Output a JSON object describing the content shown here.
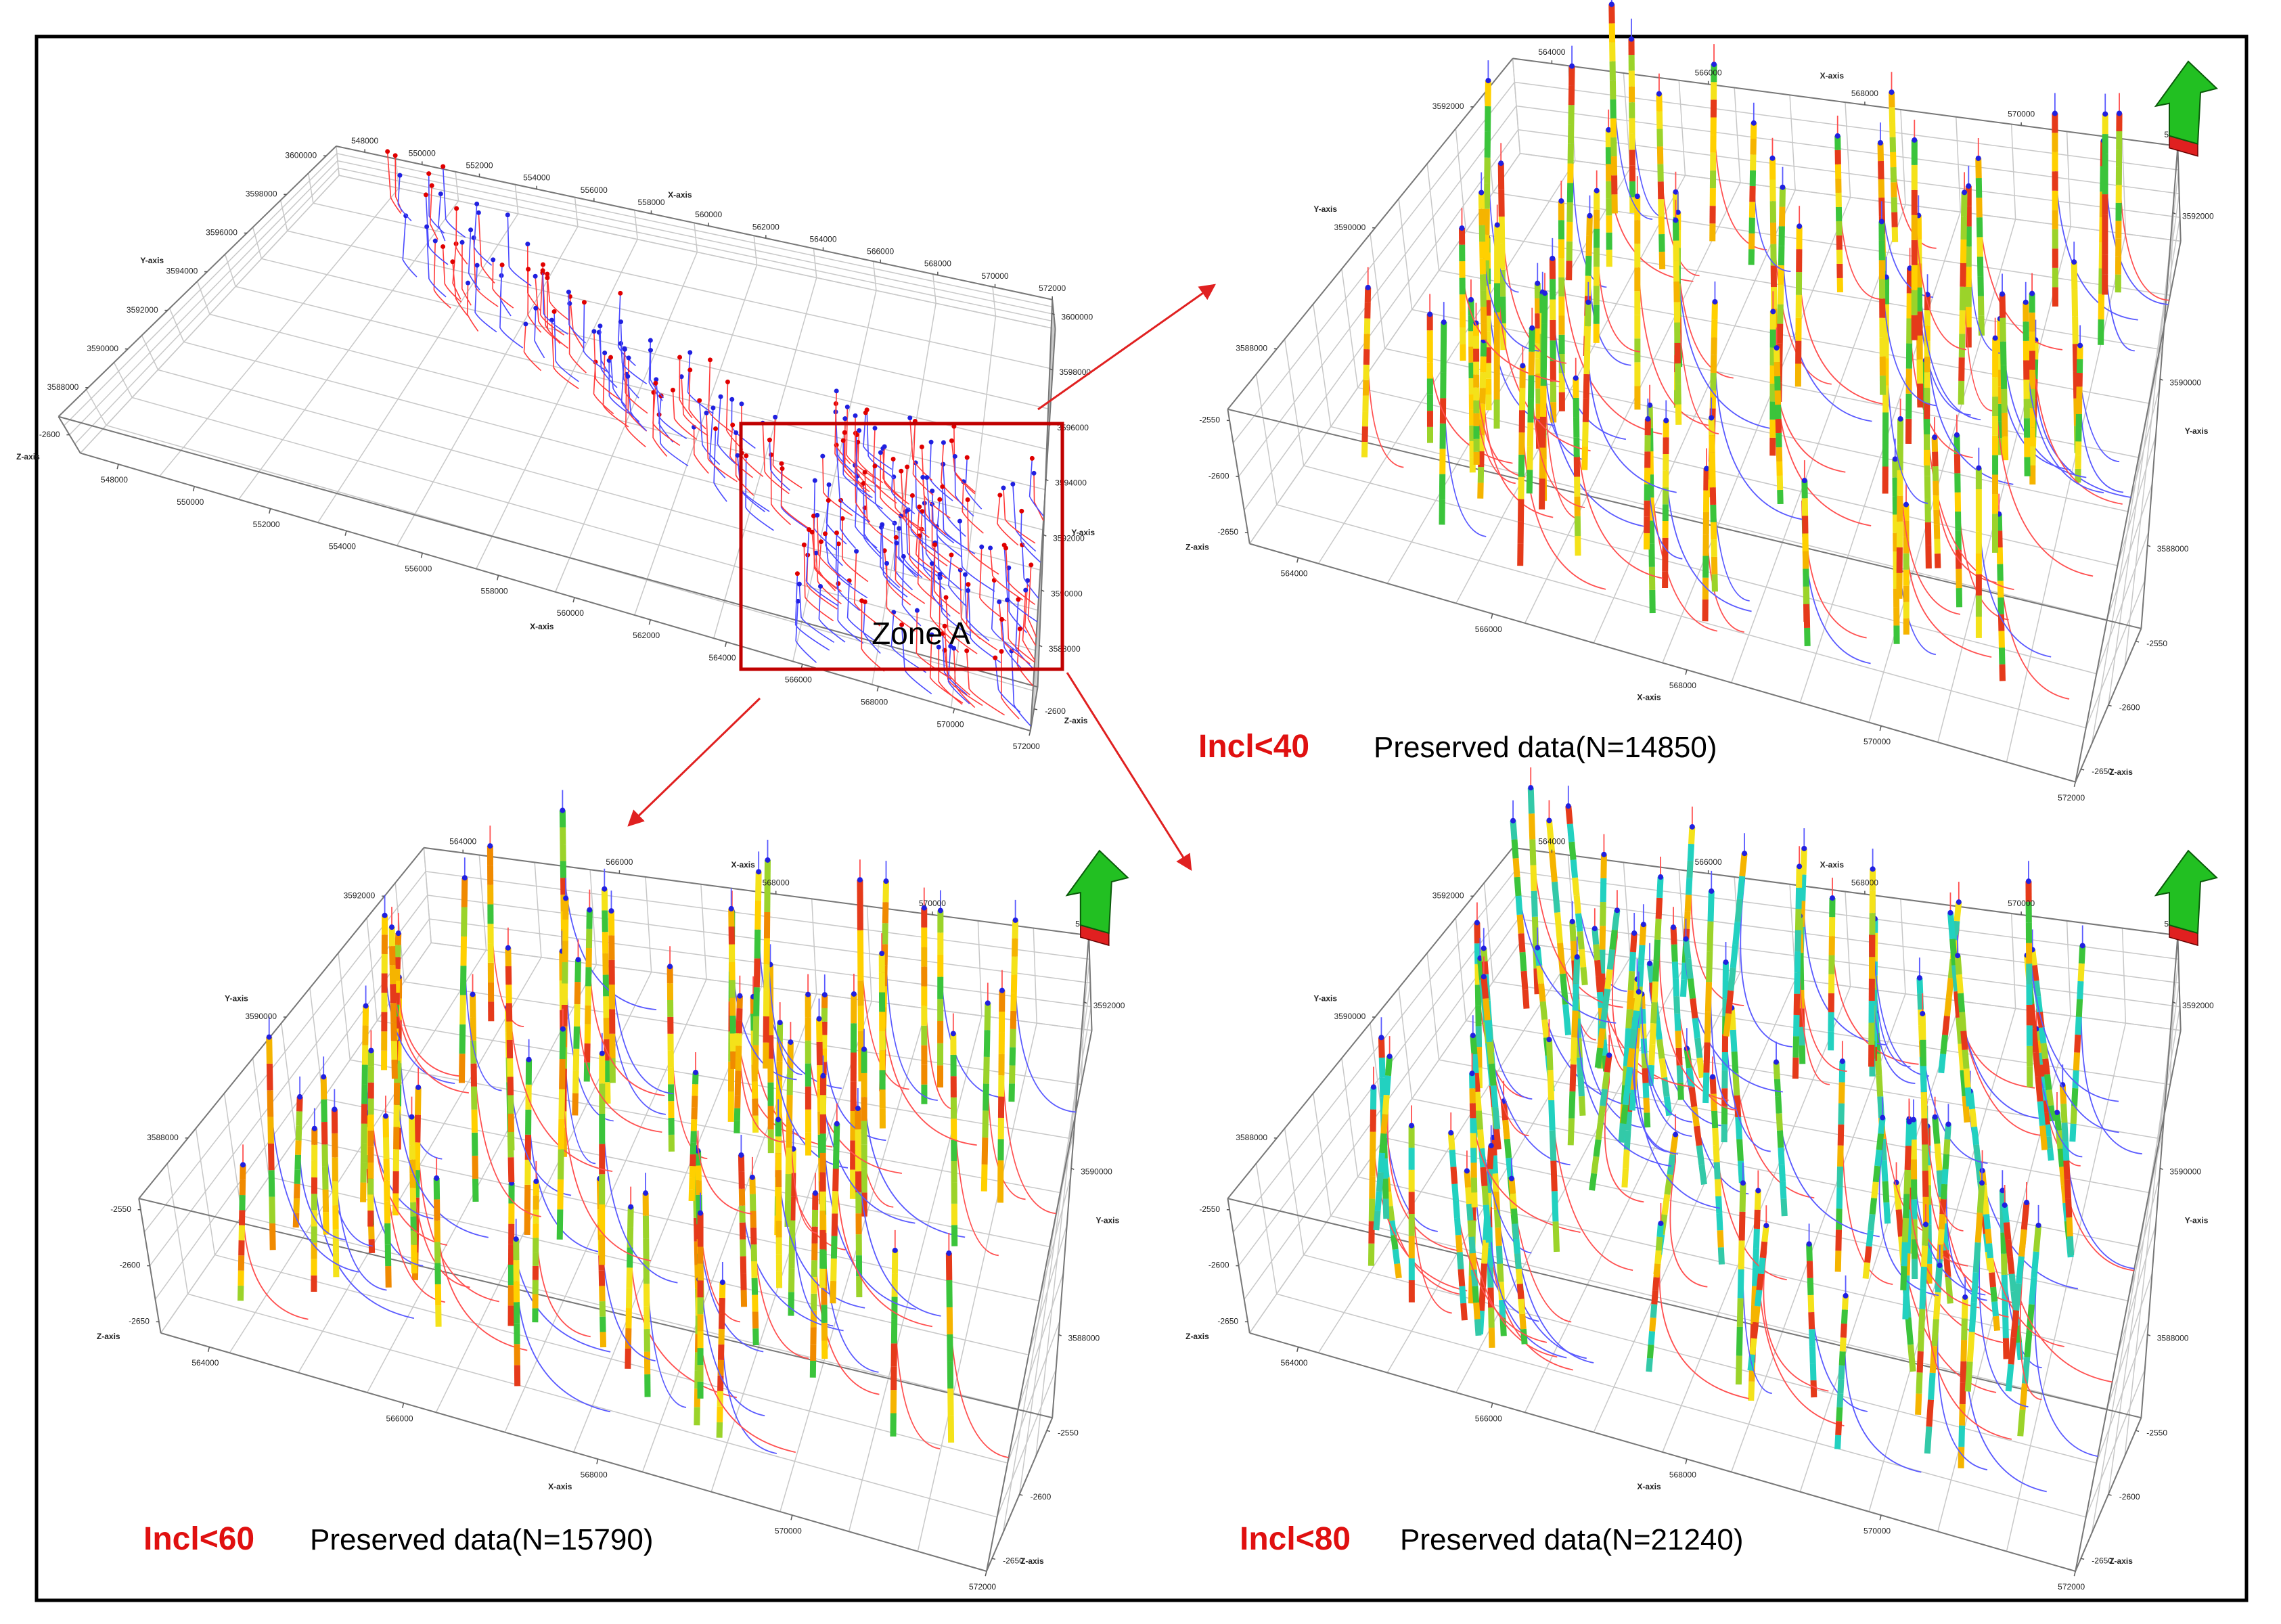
{
  "overview": {
    "zone_label": "Zone A",
    "x_axis_title": "X-axis",
    "y_axis_title": "Y-axis",
    "z_axis_title": "Z-axis",
    "xlim": [
      547000,
      572000
    ],
    "xticks": [
      548000,
      550000,
      552000,
      554000,
      556000,
      558000,
      560000,
      562000,
      564000,
      566000,
      568000,
      570000,
      572000
    ],
    "ylim": [
      3586500,
      3600500
    ],
    "yticks": [
      3588000,
      3590000,
      3592000,
      3594000,
      3596000,
      3598000,
      3600000
    ],
    "zlim": [
      -2650,
      -2550
    ],
    "zticks": [
      -2600
    ]
  },
  "panels": [
    {
      "filter": "Incl<40",
      "caption": "Preserved data(N=14850)",
      "x_axis_title": "X-axis",
      "y_axis_title": "Y-axis",
      "z_axis_title": "Z-axis",
      "xlim": [
        563500,
        572000
      ],
      "xticks": [
        564000,
        566000,
        568000,
        570000,
        572000
      ],
      "ylim": [
        3587000,
        3592800
      ],
      "yticks": [
        3588000,
        3590000,
        3592000
      ],
      "zlim": [
        -2660,
        -2540
      ],
      "zticks": [
        -2550,
        -2600,
        -2650
      ]
    },
    {
      "filter": "Incl<60",
      "caption": "Preserved data(N=15790)",
      "x_axis_title": "X-axis",
      "y_axis_title": "Y-axis",
      "z_axis_title": "Z-axis",
      "xlim": [
        563500,
        572000
      ],
      "xticks": [
        564000,
        566000,
        568000,
        570000,
        572000
      ],
      "ylim": [
        3587000,
        3592800
      ],
      "yticks": [
        3588000,
        3590000,
        3592000
      ],
      "zlim": [
        -2660,
        -2540
      ],
      "zticks": [
        -2550,
        -2600,
        -2650
      ]
    },
    {
      "filter": "Incl<80",
      "caption": "Preserved data(N=21240)",
      "x_axis_title": "X-axis",
      "y_axis_title": "Y-axis",
      "z_axis_title": "Z-axis",
      "xlim": [
        563500,
        572000
      ],
      "xticks": [
        564000,
        566000,
        568000,
        570000,
        572000
      ],
      "ylim": [
        3587000,
        3592800
      ],
      "yticks": [
        3588000,
        3590000,
        3592000
      ],
      "zlim": [
        -2660,
        -2540
      ],
      "zticks": [
        -2550,
        -2600,
        -2650
      ]
    }
  ]
}
